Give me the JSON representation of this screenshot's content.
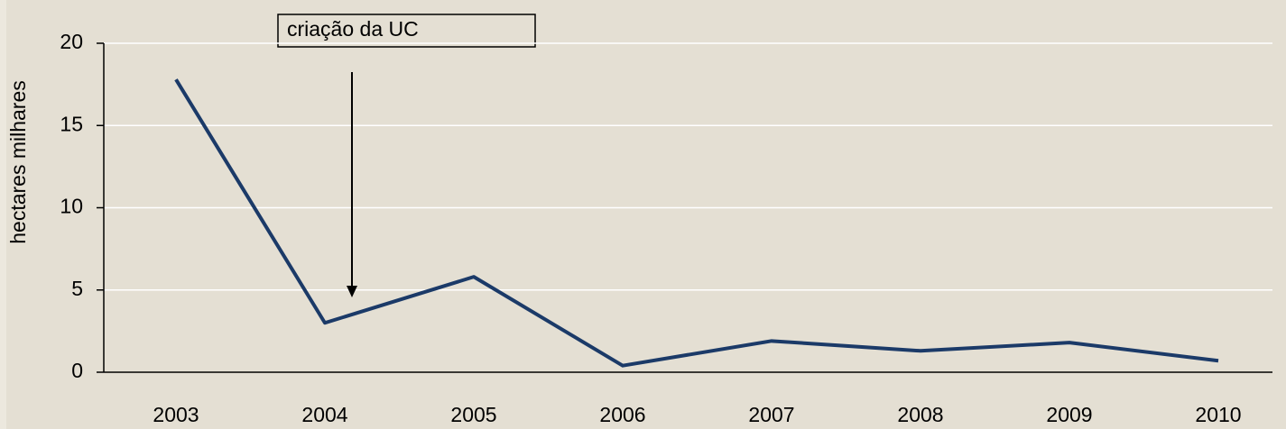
{
  "chart_data": {
    "type": "line",
    "y_label": "hectares milhares",
    "annotation": "criação da UC",
    "categories": [
      "2003",
      "2004",
      "2005",
      "2006",
      "2007",
      "2008",
      "2009",
      "2010"
    ],
    "series": [
      {
        "name": "hectares",
        "color": "#1b3a68",
        "values": [
          17.8,
          3.0,
          5.8,
          0.4,
          1.9,
          1.3,
          1.8,
          0.7
        ]
      }
    ],
    "ylim": [
      0,
      20
    ],
    "yticks": [
      0,
      5,
      10,
      15,
      20
    ],
    "grid": true
  }
}
